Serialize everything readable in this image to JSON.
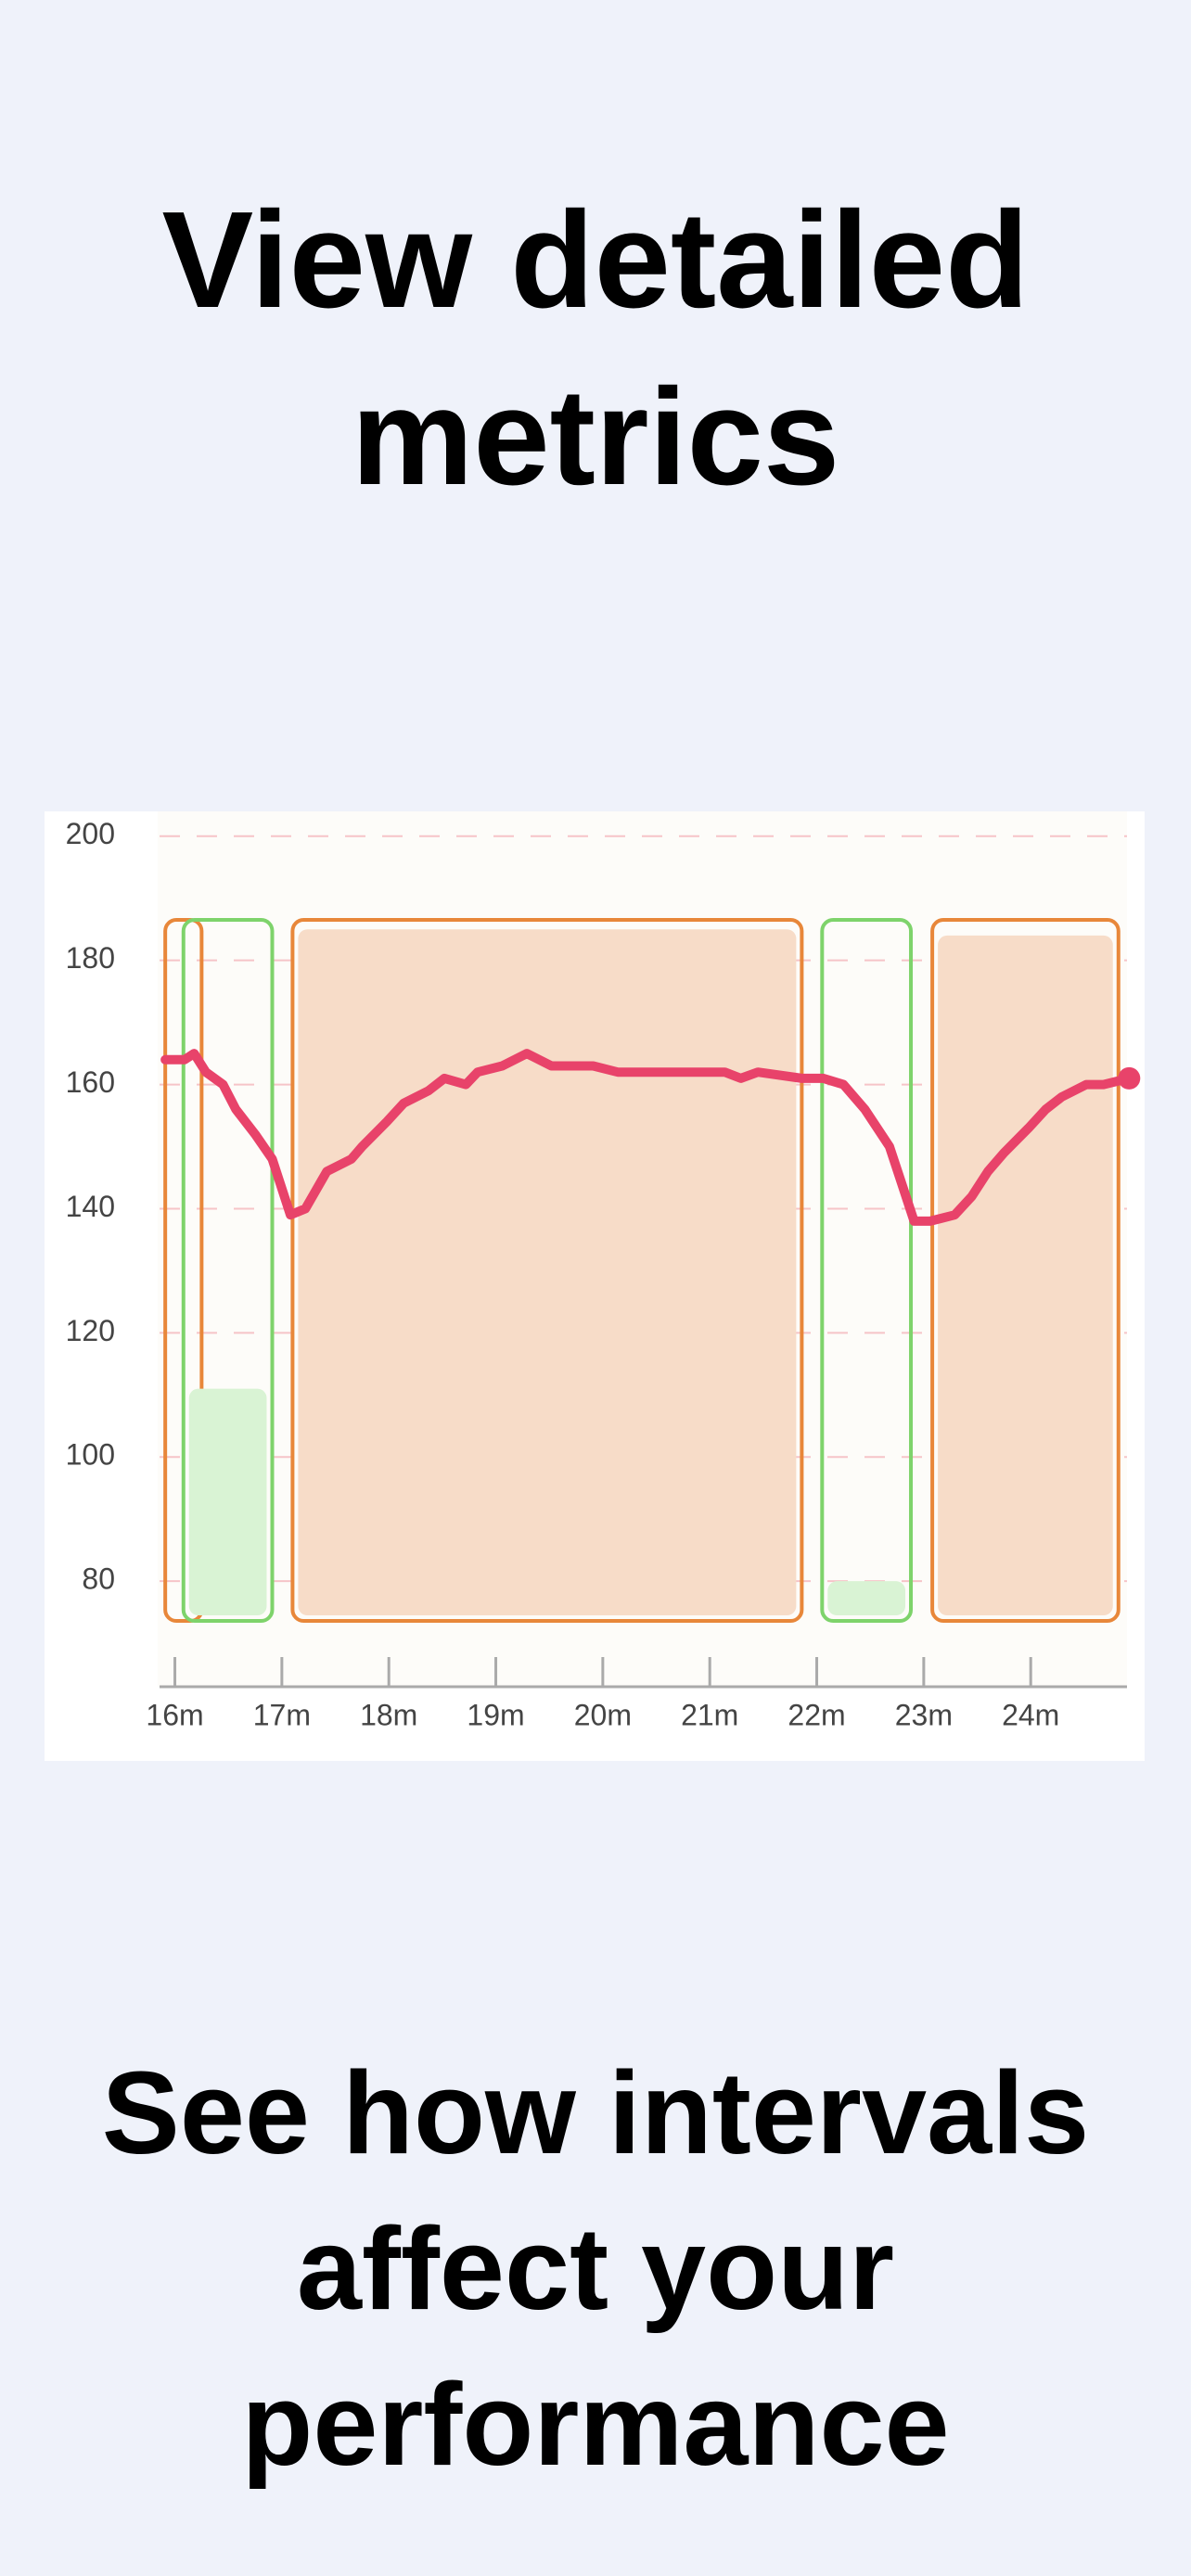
{
  "header": {
    "title": "View detailed metrics"
  },
  "chart_data": {
    "type": "line",
    "x": [
      15.91,
      16.09,
      16.18,
      16.29,
      16.45,
      16.57,
      16.75,
      16.91,
      17.08,
      17.22,
      17.42,
      17.65,
      17.75,
      17.98,
      18.14,
      18.37,
      18.52,
      18.72,
      18.83,
      19.06,
      19.29,
      19.52,
      19.68,
      19.91,
      20.14,
      20.29,
      20.68,
      21.14,
      21.29,
      21.45,
      21.86,
      22.06,
      22.25,
      22.45,
      22.68,
      22.91,
      23.06,
      23.29,
      23.45,
      23.6,
      23.75,
      23.98,
      24.14,
      24.29,
      24.52,
      24.68,
      24.92
    ],
    "series": [
      {
        "color": "#e8436a",
        "values": [
          164,
          164,
          165,
          162,
          160,
          156,
          152,
          148,
          139,
          140,
          146,
          148,
          150,
          154,
          157,
          159,
          161,
          160,
          162,
          163,
          165,
          163,
          163,
          163,
          162,
          162,
          162,
          162,
          161,
          162,
          161,
          161,
          160,
          156,
          150,
          138,
          138,
          139,
          142,
          146,
          149,
          153,
          156,
          158,
          160,
          160,
          161
        ]
      }
    ],
    "intervals": [
      {
        "start": 15.91,
        "end": 16.25,
        "value": null,
        "color": "#e8873a",
        "fill": "#f7dcc8"
      },
      {
        "start": 16.08,
        "end": 16.91,
        "value": 111,
        "color": "#7ed36b",
        "fill": "#d9f3d4"
      },
      {
        "start": 17.1,
        "end": 21.86,
        "value": 185,
        "color": "#e8873a",
        "fill": "#f7dcc8"
      },
      {
        "start": 22.05,
        "end": 22.88,
        "value": 80,
        "color": "#7ed36b",
        "fill": "#d9f3d4"
      },
      {
        "start": 23.08,
        "end": 24.82,
        "value": 184,
        "color": "#e8873a",
        "fill": "#f7dcc8"
      }
    ],
    "xlim": [
      15.9,
      24.9
    ],
    "ylim": [
      63,
      204
    ],
    "xticks": [
      {
        "value": 16,
        "label": "16m"
      },
      {
        "value": 17,
        "label": "17m"
      },
      {
        "value": 18,
        "label": "18m"
      },
      {
        "value": 19,
        "label": "19m"
      },
      {
        "value": 20,
        "label": "20m"
      },
      {
        "value": 21,
        "label": "21m"
      },
      {
        "value": 22,
        "label": "22m"
      },
      {
        "value": 23,
        "label": "23m"
      },
      {
        "value": 24,
        "label": "24m"
      }
    ],
    "yticks": [
      80,
      100,
      120,
      140,
      160,
      180,
      200
    ],
    "grid": true
  },
  "footer": {
    "title": "See how intervals affect your performance"
  }
}
